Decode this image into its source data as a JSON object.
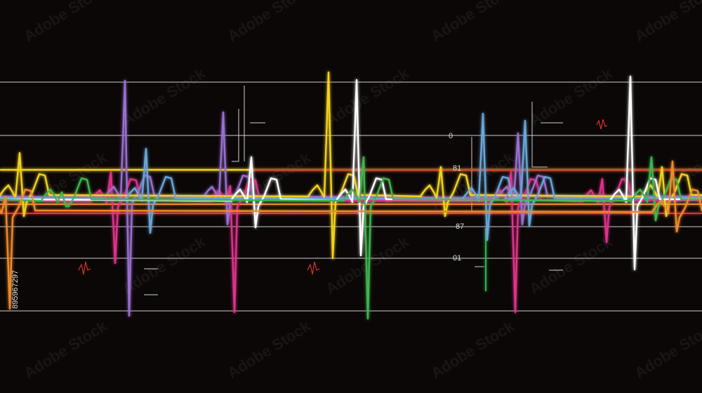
{
  "labels": [
    "0",
    "81",
    "87",
    "01"
  ],
  "watermark": "Adobe Stock",
  "image_id": "895967297"
}
